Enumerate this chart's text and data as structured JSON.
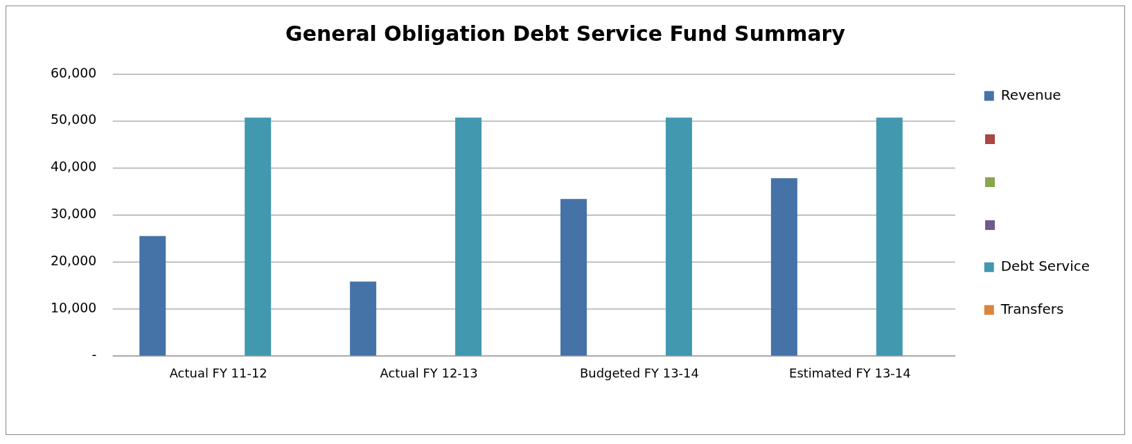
{
  "chart_data": {
    "type": "bar",
    "title": "General Obligation Debt Service Fund Summary",
    "categories": [
      "Actual FY 11-12",
      "Actual FY 12-13",
      "Budgeted FY 13-14",
      "Estimated FY 13-14"
    ],
    "series": [
      {
        "name": "Revenue",
        "color": "#4572a7",
        "values": [
          25500,
          15800,
          33400,
          37800
        ]
      },
      {
        "color": "#aa4643",
        "values": [
          0,
          0,
          0,
          0
        ]
      },
      {
        "color": "#89a54e",
        "values": [
          0,
          0,
          0,
          0
        ]
      },
      {
        "color": "#71588f",
        "values": [
          0,
          0,
          0,
          0
        ]
      },
      {
        "name": "Debt Service",
        "color": "#4198af",
        "values": [
          50700,
          50700,
          50700,
          50700
        ]
      },
      {
        "name": "Transfers",
        "color": "#db843d",
        "values": [
          0,
          0,
          0,
          0
        ]
      }
    ],
    "ylim": [
      0,
      60000
    ],
    "yticks": [
      {
        "value": 0,
        "label": "-"
      },
      {
        "value": 10000,
        "label": "10,000"
      },
      {
        "value": 20000,
        "label": "20,000"
      },
      {
        "value": 30000,
        "label": "30,000"
      },
      {
        "value": 40000,
        "label": "40,000"
      },
      {
        "value": 50000,
        "label": "50,000"
      },
      {
        "value": 60000,
        "label": "60,000"
      }
    ],
    "grid": "y",
    "legend": "right"
  }
}
